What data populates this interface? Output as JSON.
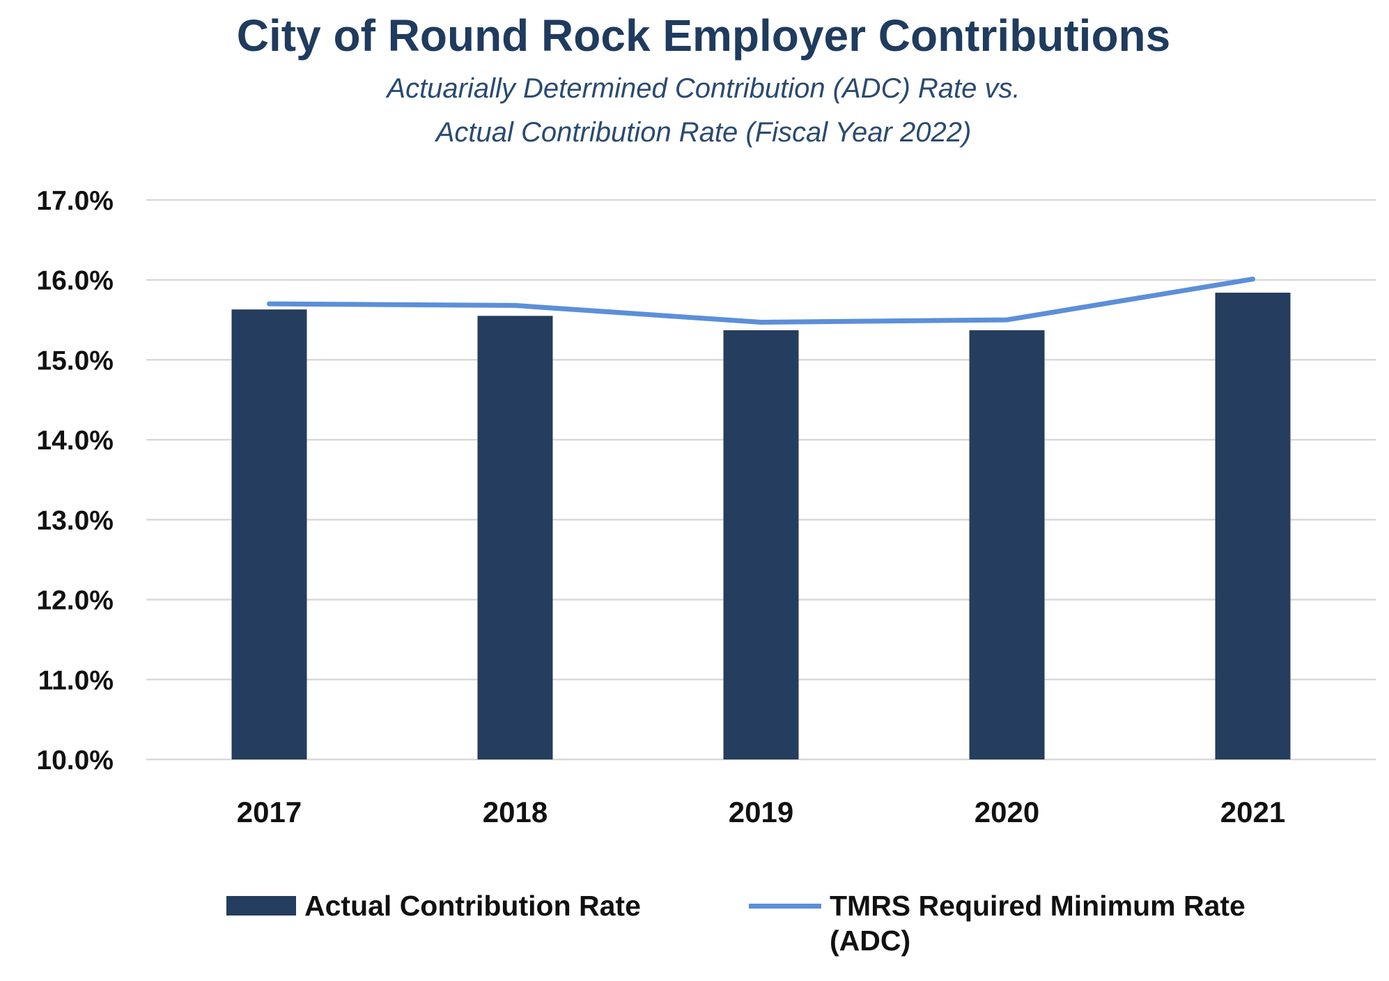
{
  "chart_data": {
    "type": "bar",
    "title": "City of Round Rock Employer Contributions",
    "subtitle": [
      "Actuarially Determined Contribution (ADC) Rate vs.",
      "Actual Contribution Rate (Fiscal Year 2022)"
    ],
    "categories": [
      "2017",
      "2018",
      "2019",
      "2020",
      "2021"
    ],
    "series": [
      {
        "name": "Actual Contribution Rate",
        "type": "bar",
        "values": [
          15.63,
          15.55,
          15.37,
          15.37,
          15.84
        ],
        "color": "#253d5e"
      },
      {
        "name": "TMRS Required Minimum Rate (ADC)",
        "type": "line",
        "values": [
          15.7,
          15.68,
          15.47,
          15.5,
          16.01
        ],
        "color": "#5b8fd9"
      }
    ],
    "yticks": [
      "17.0%",
      "16.0%",
      "15.0%",
      "14.0%",
      "13.0%",
      "12.0%",
      "11.0%",
      "10.0%"
    ],
    "ylim": [
      10.0,
      17.0
    ],
    "xlabel": "",
    "ylabel": "",
    "grid": true,
    "legend_position": "bottom"
  },
  "colors": {
    "title": "#1f3b5e",
    "grid": "#d9d9d9",
    "bar": "#253d5e",
    "line": "#5b8fd9"
  }
}
